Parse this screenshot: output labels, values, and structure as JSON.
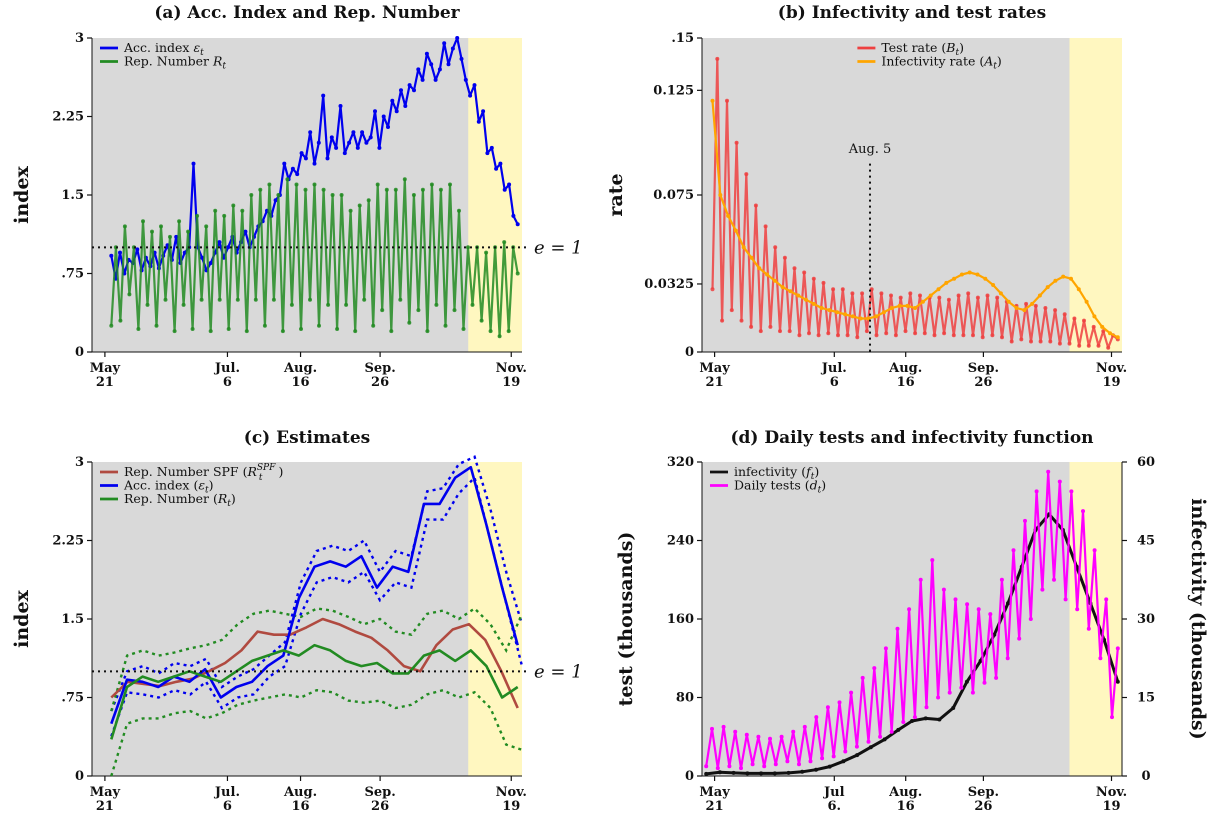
{
  "chart_data": [
    {
      "panel": "a",
      "type": "line",
      "title": "(a) Acc. Index and Rep. Number",
      "ylabel": "index",
      "ylim": [
        0,
        3
      ],
      "yticks": [
        "0",
        ".75",
        "1.5",
        "2.25",
        "3"
      ],
      "yticks_values": [
        0,
        0.75,
        1.5,
        2.25,
        3
      ],
      "xticks": [
        [
          "May",
          "21"
        ],
        [
          "Jul.",
          "6"
        ],
        [
          "Aug.",
          "16"
        ],
        [
          "Sep.",
          "26"
        ],
        [
          "Nov.",
          "19"
        ]
      ],
      "shaded_region": "Oct. 25 – Nov. 19",
      "reference_line": {
        "y": 1,
        "label": "e = 1"
      },
      "legend": "top-left",
      "series": [
        {
          "name": "Acc. index ε_t",
          "color": "#0000ee",
          "values": [
            0.92,
            0.7,
            0.95,
            0.75,
            0.88,
            0.85,
            0.98,
            0.78,
            0.9,
            0.82,
            0.95,
            0.8,
            0.92,
            1.02,
            0.88,
            1.1,
            0.85,
            0.95,
            1.0,
            1.8,
            1.0,
            0.9,
            0.78,
            0.85,
            0.95,
            1.05,
            0.9,
            1.0,
            1.1,
            0.95,
            1.05,
            1.15,
            1.0,
            1.1,
            1.2,
            1.25,
            1.35,
            1.3,
            1.45,
            1.5,
            1.8,
            1.65,
            1.75,
            1.7,
            1.9,
            1.85,
            2.1,
            1.8,
            2.0,
            2.45,
            1.85,
            2.05,
            1.95,
            2.35,
            1.9,
            2.0,
            2.1,
            1.95,
            2.1,
            2.0,
            2.05,
            2.3,
            1.95,
            2.25,
            2.15,
            2.4,
            2.3,
            2.5,
            2.35,
            2.55,
            2.5,
            2.7,
            2.6,
            2.85,
            2.75,
            2.6,
            2.7,
            2.95,
            2.75,
            2.9,
            3.0,
            2.8,
            2.6,
            2.45,
            2.55,
            2.2,
            2.3,
            1.9,
            1.95,
            1.75,
            1.8,
            1.55,
            1.6,
            1.3,
            1.22
          ]
        },
        {
          "name": "Rep. Number R_t",
          "color": "#228b22",
          "values": [
            0.25,
            1.0,
            0.3,
            1.2,
            0.55,
            1.0,
            0.22,
            1.25,
            0.45,
            1.15,
            0.25,
            1.2,
            0.5,
            1.1,
            0.2,
            1.25,
            0.45,
            1.15,
            0.22,
            1.3,
            0.5,
            1.2,
            0.2,
            1.35,
            0.5,
            1.3,
            0.22,
            1.4,
            0.5,
            1.35,
            0.2,
            1.5,
            0.5,
            1.55,
            0.25,
            1.6,
            0.5,
            1.5,
            0.2,
            1.65,
            0.45,
            1.6,
            0.22,
            1.55,
            0.5,
            1.6,
            0.25,
            1.55,
            0.45,
            1.5,
            0.22,
            1.5,
            0.45,
            1.35,
            0.2,
            1.4,
            0.5,
            1.45,
            0.25,
            1.6,
            0.4,
            1.55,
            0.2,
            1.55,
            0.5,
            1.65,
            0.28,
            1.5,
            0.4,
            1.55,
            0.2,
            1.6,
            0.45,
            1.55,
            0.25,
            1.6,
            0.4,
            1.35,
            0.22,
            1.0,
            0.45,
            1.0,
            0.3,
            0.95,
            0.2,
            1.0,
            0.15,
            1.05,
            0.2,
            1.0,
            0.75
          ]
        }
      ]
    },
    {
      "panel": "b",
      "type": "line",
      "title": "(b) Infectivity and test rates",
      "ylabel": "rate",
      "ylim": [
        0,
        0.15
      ],
      "yticks": [
        "0",
        "0.0325",
        "0.075",
        "0.125",
        ".15"
      ],
      "yticks_values": [
        0,
        0.0325,
        0.075,
        0.125,
        0.15
      ],
      "xticks": [
        [
          "May",
          "21"
        ],
        [
          "Jul.",
          "6"
        ],
        [
          "Aug.",
          "16"
        ],
        [
          "Sep.",
          "26"
        ],
        [
          "Nov.",
          "19"
        ]
      ],
      "shaded_region": "Oct. 25 – Nov. 19",
      "annotation": {
        "label": "Aug. 5"
      },
      "legend": "top-center",
      "series": [
        {
          "name": "Test rate (B_t)",
          "color": "#ee4040",
          "values": [
            0.03,
            0.14,
            0.015,
            0.12,
            0.02,
            0.1,
            0.015,
            0.085,
            0.012,
            0.07,
            0.01,
            0.06,
            0.012,
            0.05,
            0.01,
            0.045,
            0.01,
            0.04,
            0.008,
            0.038,
            0.009,
            0.035,
            0.008,
            0.033,
            0.009,
            0.03,
            0.008,
            0.03,
            0.008,
            0.028,
            0.007,
            0.028,
            0.01,
            0.03,
            0.008,
            0.028,
            0.009,
            0.027,
            0.008,
            0.026,
            0.01,
            0.028,
            0.009,
            0.027,
            0.009,
            0.026,
            0.008,
            0.026,
            0.009,
            0.025,
            0.008,
            0.027,
            0.008,
            0.028,
            0.008,
            0.026,
            0.007,
            0.027,
            0.008,
            0.026,
            0.007,
            0.024,
            0.005,
            0.022,
            0.006,
            0.023,
            0.005,
            0.022,
            0.005,
            0.021,
            0.005,
            0.02,
            0.004,
            0.018,
            0.004,
            0.016,
            0.003,
            0.015,
            0.003,
            0.012,
            0.003,
            0.01,
            0.002,
            0.008,
            0.006
          ]
        },
        {
          "name": "Infectivity rate (A_t)",
          "color": "#ffa500",
          "values": [
            0.12,
            0.075,
            0.065,
            0.058,
            0.05,
            0.045,
            0.04,
            0.037,
            0.034,
            0.031,
            0.029,
            0.027,
            0.025,
            0.023,
            0.021,
            0.02,
            0.019,
            0.018,
            0.017,
            0.016,
            0.016,
            0.017,
            0.019,
            0.021,
            0.022,
            0.022,
            0.021,
            0.024,
            0.027,
            0.03,
            0.033,
            0.035,
            0.037,
            0.038,
            0.037,
            0.035,
            0.032,
            0.028,
            0.024,
            0.021,
            0.02,
            0.023,
            0.027,
            0.031,
            0.034,
            0.036,
            0.035,
            0.03,
            0.024,
            0.017,
            0.012,
            0.009,
            0.007
          ]
        }
      ]
    },
    {
      "panel": "c",
      "type": "line",
      "title": "(c) Estimates",
      "ylabel": "index",
      "ylim": [
        0,
        3
      ],
      "yticks": [
        "0",
        ".75",
        "1.5",
        "2.25",
        "3"
      ],
      "yticks_values": [
        0,
        0.75,
        1.5,
        2.25,
        3
      ],
      "xticks": [
        [
          "May",
          "21"
        ],
        [
          "Jul.",
          "6"
        ],
        [
          "Aug.",
          "16"
        ],
        [
          "Sep.",
          "26"
        ],
        [
          "Nov.",
          "19"
        ]
      ],
      "shaded_region": "Oct. 25 – Nov. 19",
      "reference_line": {
        "y": 1,
        "label": "e = 1"
      },
      "legend": "top-left",
      "series": [
        {
          "name": "Rep. Number SPF (R_t^{SPF})",
          "color": "#b04a40",
          "values": [
            0.75,
            0.9,
            0.88,
            0.86,
            0.9,
            0.93,
            1.0,
            1.08,
            1.2,
            1.38,
            1.35,
            1.35,
            1.42,
            1.5,
            1.45,
            1.38,
            1.32,
            1.2,
            1.05,
            1.0,
            1.25,
            1.4,
            1.45,
            1.3,
            1.0,
            0.65
          ]
        },
        {
          "name": "Acc. index (ε_t)",
          "color": "#0000ee",
          "values": [
            0.5,
            0.92,
            0.9,
            0.85,
            0.95,
            0.9,
            1.02,
            0.75,
            0.85,
            0.9,
            1.05,
            1.15,
            1.7,
            2.0,
            2.05,
            2.0,
            2.1,
            1.8,
            2.0,
            1.95,
            2.6,
            2.6,
            2.85,
            2.95,
            2.4,
            1.8,
            1.25
          ]
        },
        {
          "name": "Rep. Number (R_t)",
          "color": "#228b22",
          "values": [
            0.35,
            0.85,
            0.95,
            0.9,
            0.95,
            1.0,
            0.95,
            0.9,
            1.0,
            1.1,
            1.15,
            1.2,
            1.15,
            1.25,
            1.2,
            1.1,
            1.05,
            1.08,
            0.98,
            0.98,
            1.15,
            1.2,
            1.1,
            1.2,
            1.05,
            0.75,
            0.85
          ]
        }
      ],
      "bands": [
        {
          "series": "Acc. index (ε_t)",
          "upper": [
            0.62,
            1.0,
            1.05,
            0.98,
            1.08,
            1.05,
            1.12,
            0.85,
            0.95,
            1.02,
            1.15,
            1.28,
            1.85,
            2.15,
            2.2,
            2.15,
            2.25,
            1.95,
            2.15,
            2.1,
            2.72,
            2.75,
            2.98,
            3.05,
            2.55,
            1.95,
            1.45
          ],
          "lower": [
            0.38,
            0.8,
            0.78,
            0.75,
            0.82,
            0.78,
            0.9,
            0.65,
            0.75,
            0.78,
            0.95,
            1.05,
            1.55,
            1.85,
            1.9,
            1.85,
            1.95,
            1.68,
            1.85,
            1.8,
            2.45,
            2.45,
            2.7,
            2.85,
            2.25,
            1.65,
            1.05
          ]
        },
        {
          "series": "Rep. Number (R_t)",
          "upper": [
            0.62,
            1.15,
            1.2,
            1.15,
            1.18,
            1.22,
            1.25,
            1.3,
            1.45,
            1.55,
            1.58,
            1.55,
            1.52,
            1.6,
            1.58,
            1.52,
            1.45,
            1.5,
            1.38,
            1.35,
            1.55,
            1.58,
            1.5,
            1.6,
            1.45,
            1.2,
            1.55
          ],
          "lower": [
            0.0,
            0.5,
            0.55,
            0.55,
            0.6,
            0.62,
            0.55,
            0.6,
            0.68,
            0.72,
            0.75,
            0.78,
            0.75,
            0.82,
            0.8,
            0.72,
            0.7,
            0.72,
            0.65,
            0.68,
            0.78,
            0.82,
            0.75,
            0.8,
            0.65,
            0.3,
            0.25
          ]
        }
      ]
    },
    {
      "panel": "d",
      "type": "line",
      "title": "(d) Daily tests and infectivity function",
      "ylabel": "test (thousands)",
      "y2label": "infectivity (thousands)",
      "ylim": [
        0,
        320
      ],
      "y2lim": [
        0,
        60
      ],
      "yticks": [
        "0",
        "80",
        "160",
        "240",
        "320"
      ],
      "yticks_values": [
        0,
        80,
        160,
        240,
        320
      ],
      "y2ticks": [
        "0",
        "15",
        "30",
        "45",
        "60"
      ],
      "y2ticks_values": [
        0,
        15,
        30,
        45,
        60
      ],
      "xticks": [
        [
          "May",
          "21"
        ],
        [
          "Jul",
          "6."
        ],
        [
          "Aug.",
          "16"
        ],
        [
          "Sep.",
          "26"
        ],
        [
          "Nov.",
          "19"
        ]
      ],
      "shaded_region": "Oct. 25 – Nov. 19",
      "legend": "top-left",
      "series": [
        {
          "name": "infectivity (f_t)",
          "axis": "right",
          "color": "#111111",
          "values": [
            0.4,
            0.7,
            0.6,
            0.5,
            0.5,
            0.5,
            0.6,
            0.8,
            1.2,
            1.8,
            2.8,
            4,
            5.5,
            7,
            8.8,
            10.5,
            11,
            10.8,
            13,
            18,
            22,
            27,
            33,
            40,
            47,
            50,
            47,
            40,
            33,
            26,
            18
          ]
        },
        {
          "name": "Daily tests (d_t)",
          "axis": "left",
          "color": "#ff00ff",
          "values": [
            10,
            48,
            8,
            50,
            10,
            45,
            8,
            42,
            12,
            40,
            10,
            38,
            12,
            40,
            15,
            45,
            12,
            50,
            15,
            60,
            18,
            70,
            20,
            75,
            25,
            85,
            30,
            100,
            35,
            110,
            40,
            130,
            45,
            150,
            55,
            170,
            60,
            200,
            70,
            220,
            80,
            190,
            85,
            180,
            90,
            175,
            85,
            170,
            95,
            165,
            100,
            200,
            120,
            230,
            140,
            260,
            160,
            290,
            190,
            310,
            200,
            300,
            180,
            290,
            170,
            270,
            150,
            230,
            120,
            180,
            60,
            130
          ]
        }
      ]
    }
  ]
}
